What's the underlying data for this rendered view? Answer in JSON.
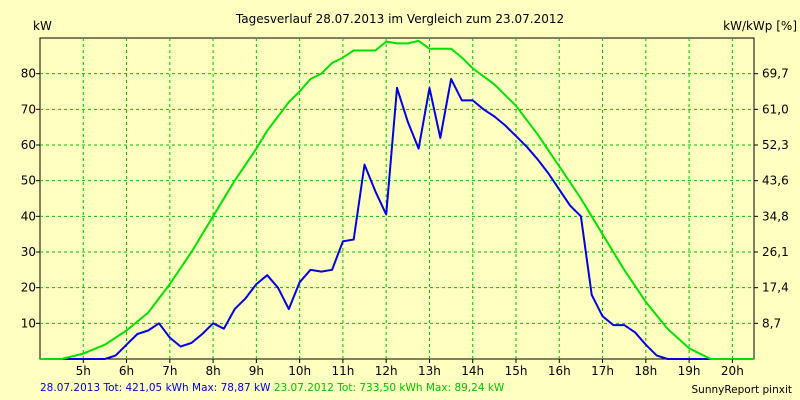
{
  "chart_data": {
    "type": "line",
    "title": "Tagesverlauf 28.07.2013 im Vergleich zum 23.07.2012",
    "ylabel": "kW",
    "y2label": "kW/kWp [%]",
    "xlim": [
      4.0,
      20.5
    ],
    "ylim": [
      0,
      90
    ],
    "x_ticks": [
      5,
      6,
      7,
      8,
      9,
      10,
      11,
      12,
      13,
      14,
      15,
      16,
      17,
      18,
      19,
      20
    ],
    "x_tick_labels": [
      "5h",
      "6h",
      "7h",
      "8h",
      "9h",
      "10h",
      "11h",
      "12h",
      "13h",
      "14h",
      "15h",
      "16h",
      "17h",
      "18h",
      "19h",
      "20h"
    ],
    "y_ticks": [
      10,
      20,
      30,
      40,
      50,
      60,
      70,
      80
    ],
    "y_tick_labels": [
      "10",
      "20",
      "30",
      "40",
      "50",
      "60",
      "70",
      "80"
    ],
    "y2_tick_labels": [
      "8,7",
      "17,4",
      "26,1",
      "34,8",
      "43,6",
      "52,3",
      "61,0",
      "69,7"
    ],
    "grid": true,
    "series": [
      {
        "name": "28.07.2013",
        "color": "#0000e0",
        "x": [
          4.0,
          5.0,
          5.5,
          5.75,
          6.0,
          6.25,
          6.5,
          6.75,
          7.0,
          7.25,
          7.5,
          7.75,
          8.0,
          8.25,
          8.5,
          8.75,
          9.0,
          9.25,
          9.5,
          9.75,
          10.0,
          10.25,
          10.5,
          10.75,
          11.0,
          11.25,
          11.5,
          11.75,
          12.0,
          12.25,
          12.5,
          12.75,
          13.0,
          13.25,
          13.5,
          13.75,
          14.0,
          14.25,
          14.5,
          14.75,
          15.0,
          15.25,
          15.5,
          15.75,
          16.0,
          16.25,
          16.5,
          16.75,
          17.0,
          17.25,
          17.5,
          17.75,
          18.0,
          18.25,
          18.5,
          19.0,
          19.5
        ],
        "values": [
          0,
          0,
          0,
          1,
          4,
          7,
          8,
          10,
          6,
          3.5,
          4.5,
          7,
          10,
          8.5,
          14,
          17,
          21,
          23.5,
          20,
          14,
          21.5,
          25,
          24.5,
          25,
          33,
          33.5,
          54.5,
          47,
          40.5,
          76,
          66.5,
          59,
          76,
          62,
          78.5,
          72.5,
          72.5,
          70,
          68,
          65.5,
          62.5,
          59.5,
          56,
          52,
          47.5,
          43,
          40,
          18,
          12,
          9.5,
          9.5,
          7.5,
          4,
          1,
          0,
          0,
          0
        ]
      },
      {
        "name": "23.07.2012",
        "color": "#00e000",
        "x": [
          4.0,
          4.5,
          5.0,
          5.5,
          6.0,
          6.5,
          7.0,
          7.5,
          8.0,
          8.5,
          9.0,
          9.25,
          9.5,
          9.75,
          10.0,
          10.25,
          10.5,
          10.75,
          11.0,
          11.25,
          11.5,
          11.75,
          12.0,
          12.25,
          12.5,
          12.75,
          13.0,
          13.25,
          13.5,
          13.75,
          14.0,
          14.5,
          15.0,
          15.5,
          16.0,
          16.5,
          17.0,
          17.5,
          18.0,
          18.5,
          19.0,
          19.5,
          20.0,
          20.5
        ],
        "values": [
          0,
          0,
          1.5,
          4,
          8,
          13,
          21,
          30,
          40,
          50,
          59,
          64,
          68,
          72,
          75,
          78.5,
          80,
          83,
          84.5,
          86.5,
          86.5,
          86.5,
          89,
          88.5,
          88.5,
          89.2,
          87,
          87,
          87,
          84.5,
          81.5,
          77,
          71,
          63,
          54,
          45,
          35,
          25,
          16,
          8.5,
          3,
          0,
          0,
          0
        ]
      }
    ]
  },
  "footer": {
    "s1": "28.07.2013 Tot: 421,05 kWh Max: 78,87 kW",
    "s2": "23.07.2012 Tot: 733,50 kWh Max: 89,24 kW",
    "credit": "SunnyReport pinxit"
  }
}
